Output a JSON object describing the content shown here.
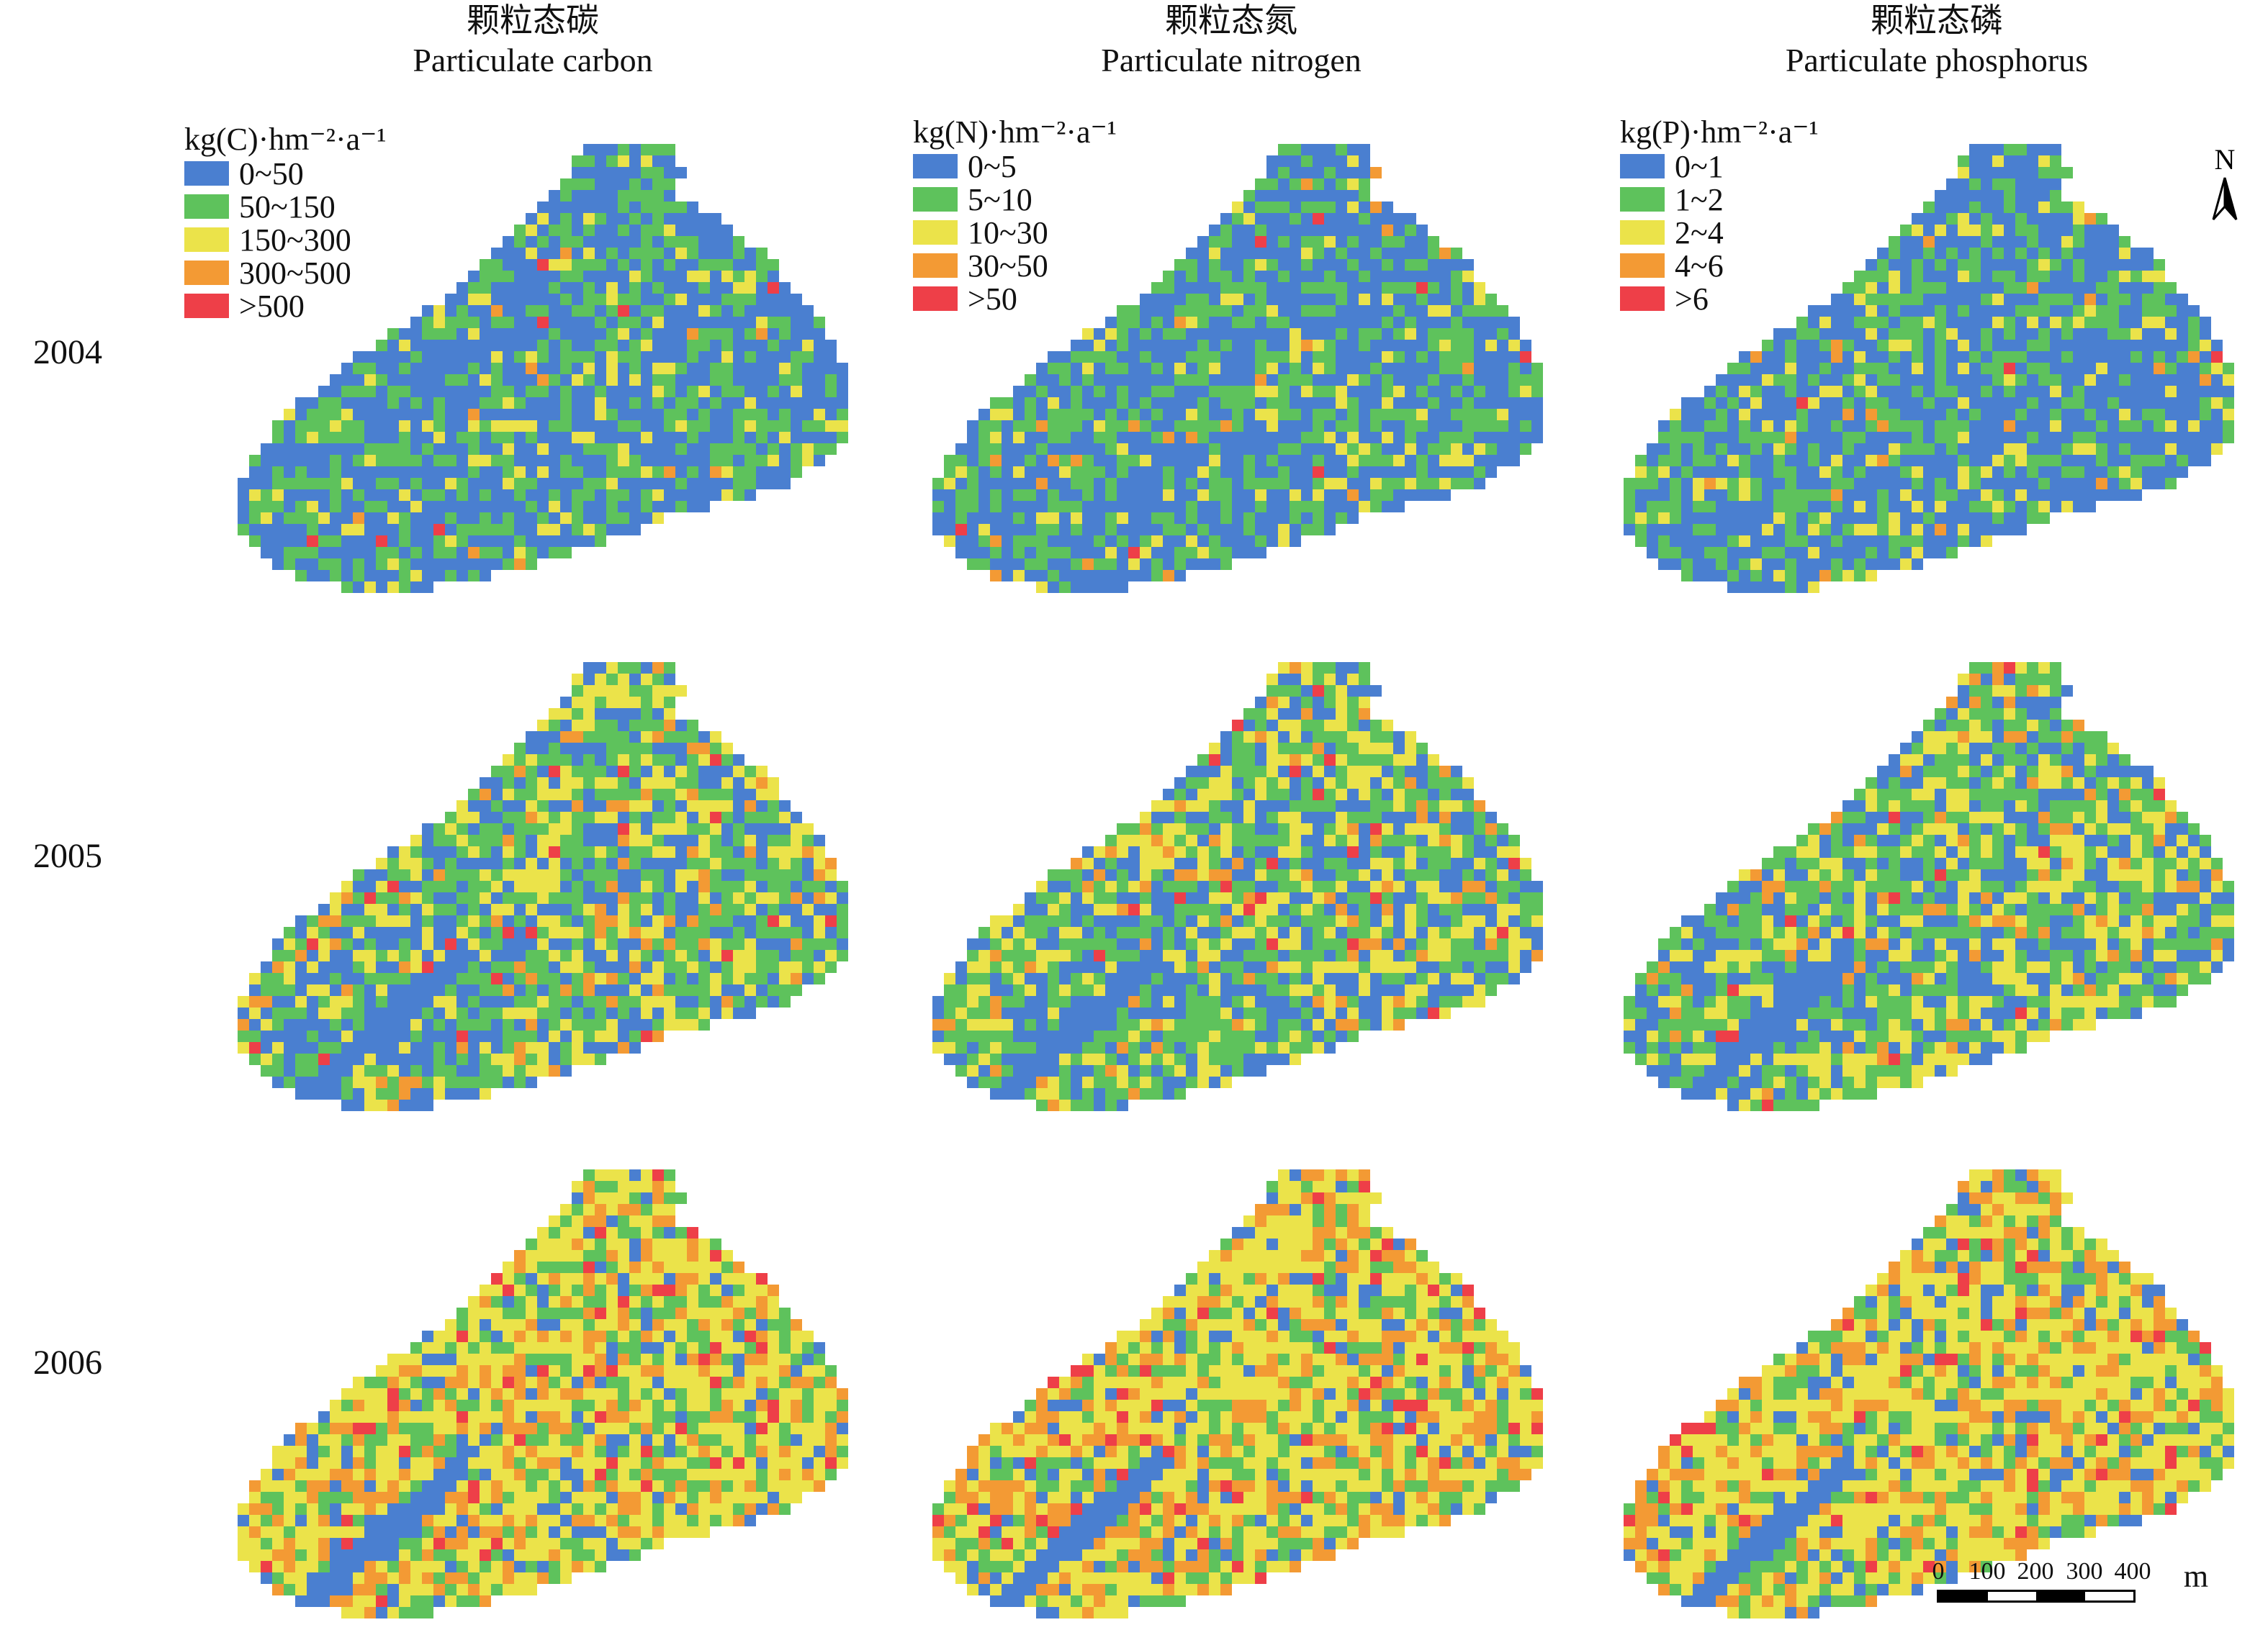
{
  "columns": [
    {
      "zh": "颗粒态碳",
      "en": "Particulate carbon"
    },
    {
      "zh": "颗粒态氮",
      "en": "Particulate nitrogen"
    },
    {
      "zh": "颗粒态磷",
      "en": "Particulate phosphorus"
    }
  ],
  "years": [
    "2004",
    "2005",
    "2006"
  ],
  "legends": [
    {
      "unit": "kg(C)·hm⁻²·a⁻¹",
      "classes": [
        "0~50",
        "50~150",
        "150~300",
        "300~500",
        ">500"
      ]
    },
    {
      "unit": "kg(N)·hm⁻²·a⁻¹",
      "classes": [
        "0~5",
        "5~10",
        "10~30",
        "30~50",
        ">50"
      ]
    },
    {
      "unit": "kg(P)·hm⁻²·a⁻¹",
      "classes": [
        "0~1",
        "1~2",
        "2~4",
        "4~6",
        ">6"
      ]
    }
  ],
  "class_colors": [
    "#4a7fd0",
    "#5ec25c",
    "#ebe34a",
    "#f39a34",
    "#ee3f48"
  ],
  "class_mix_by_year": {
    "2004": [
      0.55,
      0.35,
      0.08,
      0.015,
      0.005
    ],
    "2005": [
      0.32,
      0.36,
      0.24,
      0.06,
      0.02
    ],
    "2006": [
      0.1,
      0.2,
      0.45,
      0.21,
      0.04
    ]
  },
  "north_label": "N",
  "scale_bar": {
    "ticks": [
      "0",
      "100",
      "200",
      "300",
      "400"
    ],
    "unit": "m"
  }
}
